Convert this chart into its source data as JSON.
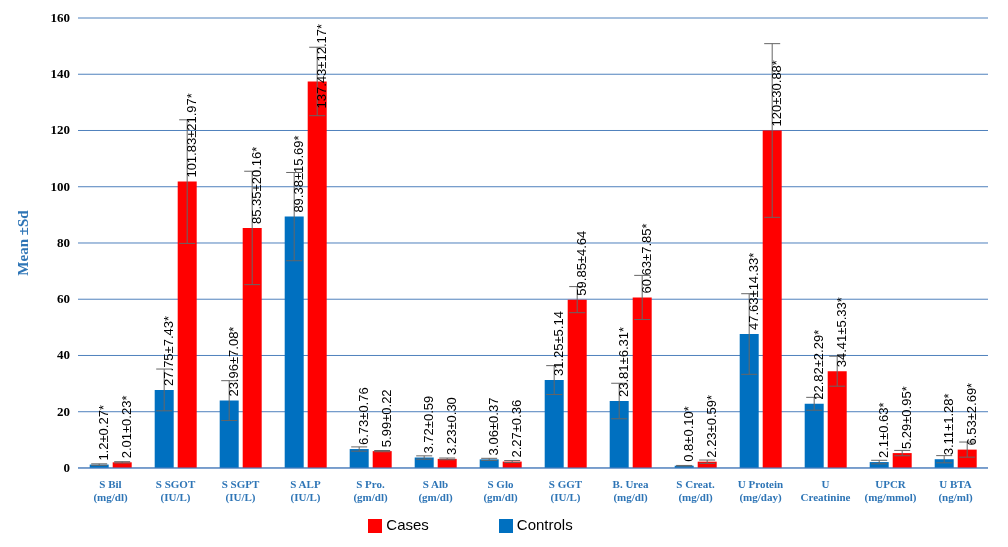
{
  "chart_data": {
    "type": "bar",
    "ylabel": "Mean ±Sd",
    "categories": [
      "S Bil\n(mg/dl)",
      "S SGOT\n(IU/L)",
      "S SGPT\n(IU/L)",
      "S ALP\n(IU/L)",
      "S Pro.\n(gm/dl)",
      "S Alb\n(gm/dl)",
      "S Glo\n(gm/dl)",
      "S GGT\n(IU/L)",
      "B. Urea\n(mg/dl)",
      "S Creat.\n(mg/dl)",
      "U Protein\n(mg/day)",
      "U\nCreatinine",
      "UPCR\n(mg/mmol)",
      "U BTA\n(ng/ml)"
    ],
    "series": [
      {
        "name": "Controls",
        "color": "#0070c0",
        "values": [
          1.2,
          27.75,
          23.96,
          89.38,
          6.73,
          3.72,
          3.06,
          31.25,
          23.81,
          0.8,
          47.63,
          22.82,
          2.1,
          3.11
        ],
        "errors": [
          0.27,
          7.43,
          7.08,
          15.69,
          0.76,
          0.59,
          0.37,
          5.14,
          6.31,
          0.1,
          14.33,
          2.29,
          0.63,
          1.28
        ],
        "value_labels": [
          "1.2±0.27*",
          "27.75±7.43*",
          "23.96±7.08*",
          "89.38±15.69*",
          "6.73±0.76",
          "3.72±0.59",
          "3.06±0.37",
          "31.25±5.14",
          "23.81±6.31*",
          "0.8±0.10*",
          "47.63±14.33*",
          "22.82±2.29*",
          "2.1±0.63*",
          "3.11±1.28*"
        ]
      },
      {
        "name": "Cases",
        "color": "#ff0000",
        "values": [
          2.01,
          101.83,
          85.35,
          137.43,
          5.99,
          3.23,
          2.27,
          59.85,
          60.63,
          2.23,
          120,
          34.41,
          5.29,
          6.53
        ],
        "errors": [
          0.23,
          21.97,
          20.16,
          12.17,
          0.22,
          0.3,
          0.36,
          4.64,
          7.85,
          0.59,
          30.88,
          5.33,
          0.95,
          2.69
        ],
        "value_labels": [
          "2.01±0.23*",
          "101.83±21.97*",
          "85.35±20.16*",
          "137.43±12.17*",
          "5.99±0.22",
          "3.23±0.30",
          "2.27±0.36",
          "59.85±4.64",
          "60.63±7.85*",
          "2.23±0.59*",
          "120±30.88*",
          "34.41±5.33*",
          "5.29±0.95*",
          "6.53±2.69*"
        ]
      }
    ],
    "ylim": [
      0,
      160
    ],
    "yticks": [
      0,
      20,
      40,
      60,
      80,
      100,
      120,
      140,
      160
    ],
    "grid": "y",
    "legend": "bottom"
  }
}
